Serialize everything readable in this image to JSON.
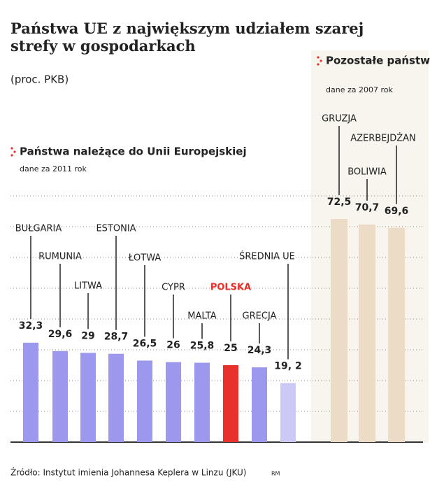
{
  "title": "Państwa UE z największym udziałem szarej strefy w gospodarkach",
  "subtitle": "(proc. PKB)",
  "source": "Źródło: Instytut imienia Johannesa Keplera w Linzu (JKU)",
  "credit": "RM",
  "chart_data": [
    {
      "type": "bar",
      "title": "Państwa należące do Unii Europejskiej",
      "note": "dane za 2011 rok",
      "categories": [
        "BUŁGARIA",
        "RUMUNIA",
        "LITWA",
        "ESTONIA",
        "ŁOTWA",
        "CYPR",
        "MALTA",
        "POLSKA",
        "GRECJA",
        "ŚREDNIA UE"
      ],
      "values": [
        32.3,
        29.6,
        29,
        28.7,
        26.5,
        26,
        25.8,
        25,
        24.3,
        19.2
      ],
      "value_labels": [
        "32,3",
        "29,6",
        "29",
        "28,7",
        "26,5",
        "26",
        "25,8",
        "25",
        "24,3",
        "19, 2"
      ],
      "colors": [
        "#9c98ee",
        "#9c98ee",
        "#9c98ee",
        "#9c98ee",
        "#9c98ee",
        "#9c98ee",
        "#9c98ee",
        "#e8302c",
        "#9c98ee",
        "#cbcaf6"
      ],
      "ylim": [
        0,
        80
      ],
      "yticks": [
        0,
        10,
        20,
        30,
        40,
        50,
        60,
        70,
        80
      ],
      "grid": true
    },
    {
      "type": "bar",
      "title": "Pozostałe państwa",
      "note": "dane za 2007 rok",
      "categories": [
        "GRUZJA",
        "BOLIWIA",
        "AZERBEJDŻAN"
      ],
      "values": [
        72.5,
        70.7,
        69.6
      ],
      "value_labels": [
        "72,5",
        "70,7",
        "69,6"
      ],
      "colors": [
        "#ecdcc6",
        "#ecdcc6",
        "#ecdcc6"
      ]
    }
  ]
}
